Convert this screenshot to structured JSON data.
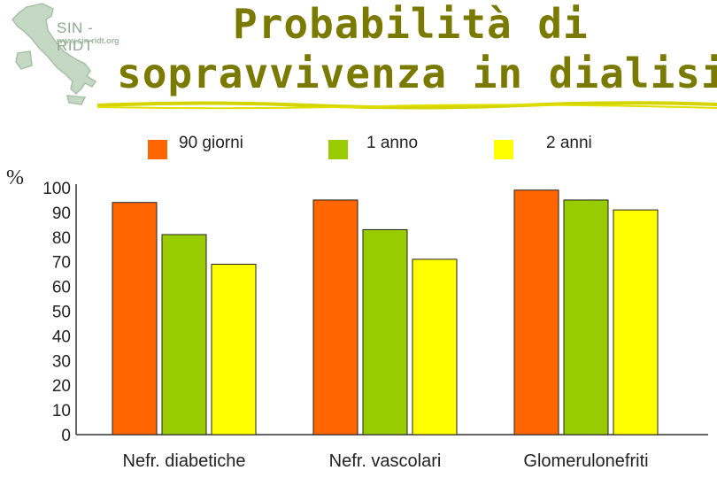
{
  "logo": {
    "name": "SIN - RIDT",
    "url": "www.sin-ridt.org"
  },
  "title": {
    "line1": "Probabilità di",
    "line2": "sopravvivenza in dialisi"
  },
  "chart_data": {
    "type": "bar",
    "unit_label": "%",
    "categories": [
      "Nefr. diabetiche",
      "Nefr. vascolari",
      "Glomerulonefriti"
    ],
    "series": [
      {
        "name": "90 giorni",
        "color": "#ff6600",
        "values": [
          94,
          95,
          99
        ]
      },
      {
        "name": "1 anno",
        "color": "#99cc00",
        "values": [
          81,
          83,
          95
        ]
      },
      {
        "name": "2 anni",
        "color": "#ffff00",
        "values": [
          69,
          71,
          91
        ]
      }
    ],
    "ylim": [
      0,
      100
    ],
    "yticks": [
      100,
      90,
      80,
      70,
      60,
      50,
      40,
      30,
      20,
      10,
      0
    ],
    "grid": false,
    "legend": "top"
  }
}
